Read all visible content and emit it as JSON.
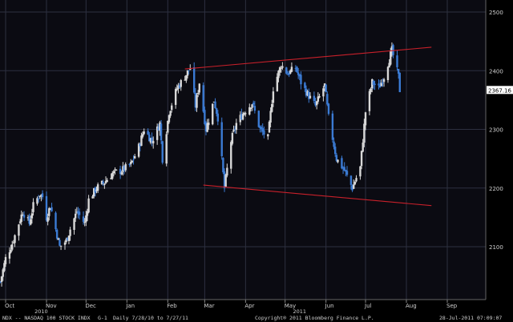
{
  "chart_data": {
    "type": "candlestick",
    "title": "",
    "security": "NDX -- NASDAQ 100 STOCK INDX",
    "period": "Daily",
    "date_range": "7/28/10 to 7/27/11",
    "last_value": "2367.16",
    "y_ticks": [
      2100,
      2200,
      2300,
      2400,
      2500
    ],
    "ylim": [
      2020,
      2525
    ],
    "months": [
      "Oct",
      "Nov",
      "Dec",
      "Jan",
      "Feb",
      "Mar",
      "Apr",
      "May",
      "Jun",
      "Jul",
      "Aug",
      "Sep"
    ],
    "years": [
      "2010",
      "2011"
    ],
    "grid": true,
    "colors": {
      "up": "#d8d8d8",
      "down": "#3b7bd4",
      "trendline": "#c8202a",
      "grid": "#2d3040",
      "background": "#000000",
      "plot": "#0b0b12"
    },
    "price_points": [
      [
        "2010-09-27",
        2040
      ],
      [
        "2010-10-01",
        2080
      ],
      [
        "2010-10-06",
        2105
      ],
      [
        "2010-10-11",
        2140
      ],
      [
        "2010-10-14",
        2160
      ],
      [
        "2010-10-19",
        2140
      ],
      [
        "2010-10-22",
        2170
      ],
      [
        "2010-10-27",
        2190
      ],
      [
        "2010-10-29",
        2185
      ],
      [
        "2010-11-01",
        2150
      ],
      [
        "2010-11-04",
        2170
      ],
      [
        "2010-11-08",
        2130
      ],
      [
        "2010-11-11",
        2100
      ],
      [
        "2010-11-16",
        2110
      ],
      [
        "2010-11-19",
        2130
      ],
      [
        "2010-11-24",
        2160
      ],
      [
        "2010-11-30",
        2140
      ],
      [
        "2010-12-03",
        2180
      ],
      [
        "2010-12-09",
        2200
      ],
      [
        "2010-12-15",
        2210
      ],
      [
        "2010-12-21",
        2225
      ],
      [
        "2010-12-28",
        2230
      ],
      [
        "2011-01-04",
        2240
      ],
      [
        "2011-01-10",
        2270
      ],
      [
        "2011-01-14",
        2300
      ],
      [
        "2011-01-20",
        2280
      ],
      [
        "2011-01-26",
        2310
      ],
      [
        "2011-01-28",
        2250
      ],
      [
        "2011-02-02",
        2330
      ],
      [
        "2011-02-08",
        2370
      ],
      [
        "2011-02-14",
        2390
      ],
      [
        "2011-02-18",
        2405
      ],
      [
        "2011-02-22",
        2340
      ],
      [
        "2011-02-25",
        2380
      ],
      [
        "2011-03-02",
        2300
      ],
      [
        "2011-03-08",
        2350
      ],
      [
        "2011-03-11",
        2320
      ],
      [
        "2011-03-16",
        2200
      ],
      [
        "2011-03-21",
        2280
      ],
      [
        "2011-03-25",
        2310
      ],
      [
        "2011-03-31",
        2330
      ],
      [
        "2011-04-06",
        2345
      ],
      [
        "2011-04-12",
        2300
      ],
      [
        "2011-04-18",
        2285
      ],
      [
        "2011-04-22",
        2370
      ],
      [
        "2011-04-28",
        2410
      ],
      [
        "2011-05-03",
        2395
      ],
      [
        "2011-05-09",
        2405
      ],
      [
        "2011-05-13",
        2380
      ],
      [
        "2011-05-18",
        2360
      ],
      [
        "2011-05-24",
        2340
      ],
      [
        "2011-05-31",
        2375
      ],
      [
        "2011-06-03",
        2320
      ],
      [
        "2011-06-09",
        2250
      ],
      [
        "2011-06-15",
        2230
      ],
      [
        "2011-06-21",
        2200
      ],
      [
        "2011-06-27",
        2235
      ],
      [
        "2011-07-01",
        2330
      ],
      [
        "2011-07-06",
        2380
      ],
      [
        "2011-07-11",
        2370
      ],
      [
        "2011-07-15",
        2390
      ],
      [
        "2011-07-21",
        2435
      ],
      [
        "2011-07-26",
        2390
      ],
      [
        "2011-07-27",
        2367
      ]
    ],
    "annotations": [
      {
        "type": "trendline",
        "from": [
          "2011-02-14",
          2403
        ],
        "to": [
          "2011-08-20",
          2440
        ]
      },
      {
        "type": "trendline",
        "from": [
          "2011-02-28",
          2205
        ],
        "to": [
          "2011-08-20",
          2170
        ]
      }
    ]
  },
  "footer": {
    "left": "NDX -- NASDAQ 100 STOCK INDX",
    "chart_id": "G-1",
    "period_range": "Daily  7/28/10 to 7/27/11",
    "copyright": "Copyright® 2011 Bloomberg Finance L.P.",
    "timestamp": "28-Jul-2011 07:09:07"
  }
}
